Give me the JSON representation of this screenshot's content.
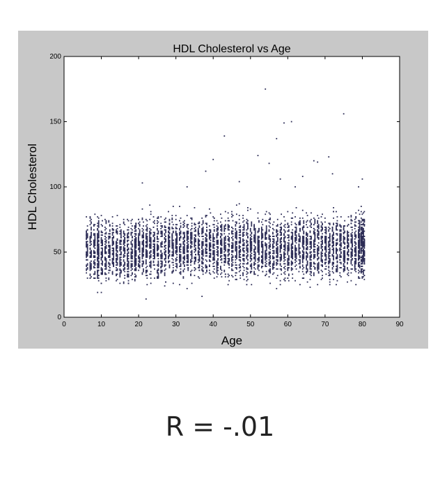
{
  "chart_data": {
    "type": "scatter",
    "title": "HDL Cholesterol vs Age",
    "xlabel": "Age",
    "ylabel": "HDL Cholesterol",
    "xlim": [
      0,
      90
    ],
    "ylim": [
      0,
      200
    ],
    "xticks": [
      "0",
      "10",
      "20",
      "30",
      "40",
      "50",
      "60",
      "70",
      "80",
      "90"
    ],
    "yticks": [
      "0",
      "50",
      "100",
      "150",
      "200"
    ],
    "grid": false,
    "point_color": "#2b2b55",
    "points": [
      [
        54,
        175
      ],
      [
        75,
        156
      ],
      [
        59,
        149
      ],
      [
        61,
        150
      ],
      [
        43,
        139
      ],
      [
        57,
        137
      ],
      [
        52,
        124
      ],
      [
        71,
        123
      ],
      [
        40,
        121
      ],
      [
        67,
        120
      ],
      [
        55,
        118
      ],
      [
        68,
        119
      ],
      [
        38,
        112
      ],
      [
        72,
        110
      ],
      [
        64,
        108
      ],
      [
        58,
        106
      ],
      [
        80,
        106
      ],
      [
        47,
        104
      ],
      [
        21,
        103
      ],
      [
        33,
        100
      ],
      [
        62,
        100
      ],
      [
        79,
        100
      ],
      [
        22,
        14
      ],
      [
        37,
        16
      ],
      [
        9,
        19
      ],
      [
        10,
        19
      ],
      [
        57,
        22
      ],
      [
        27,
        24
      ],
      [
        49,
        25
      ],
      [
        33,
        22
      ],
      [
        66,
        23
      ]
    ],
    "cloud": {
      "x_range": [
        6,
        80
      ],
      "rows": [
        {
          "x_from": 6,
          "x_to": 9,
          "y_min": 30,
          "y_max": 90,
          "center": 52
        },
        {
          "x_from": 9,
          "x_to": 19,
          "y_min": 26,
          "y_max": 92,
          "center": 50
        },
        {
          "x_from": 19,
          "x_to": 79,
          "y_min": 25,
          "y_max": 95,
          "center": 54
        },
        {
          "x_from": 79,
          "x_to": 80,
          "y_min": 25,
          "y_max": 95,
          "center": 55
        }
      ]
    }
  },
  "caption": {
    "text": "R = -.01"
  }
}
